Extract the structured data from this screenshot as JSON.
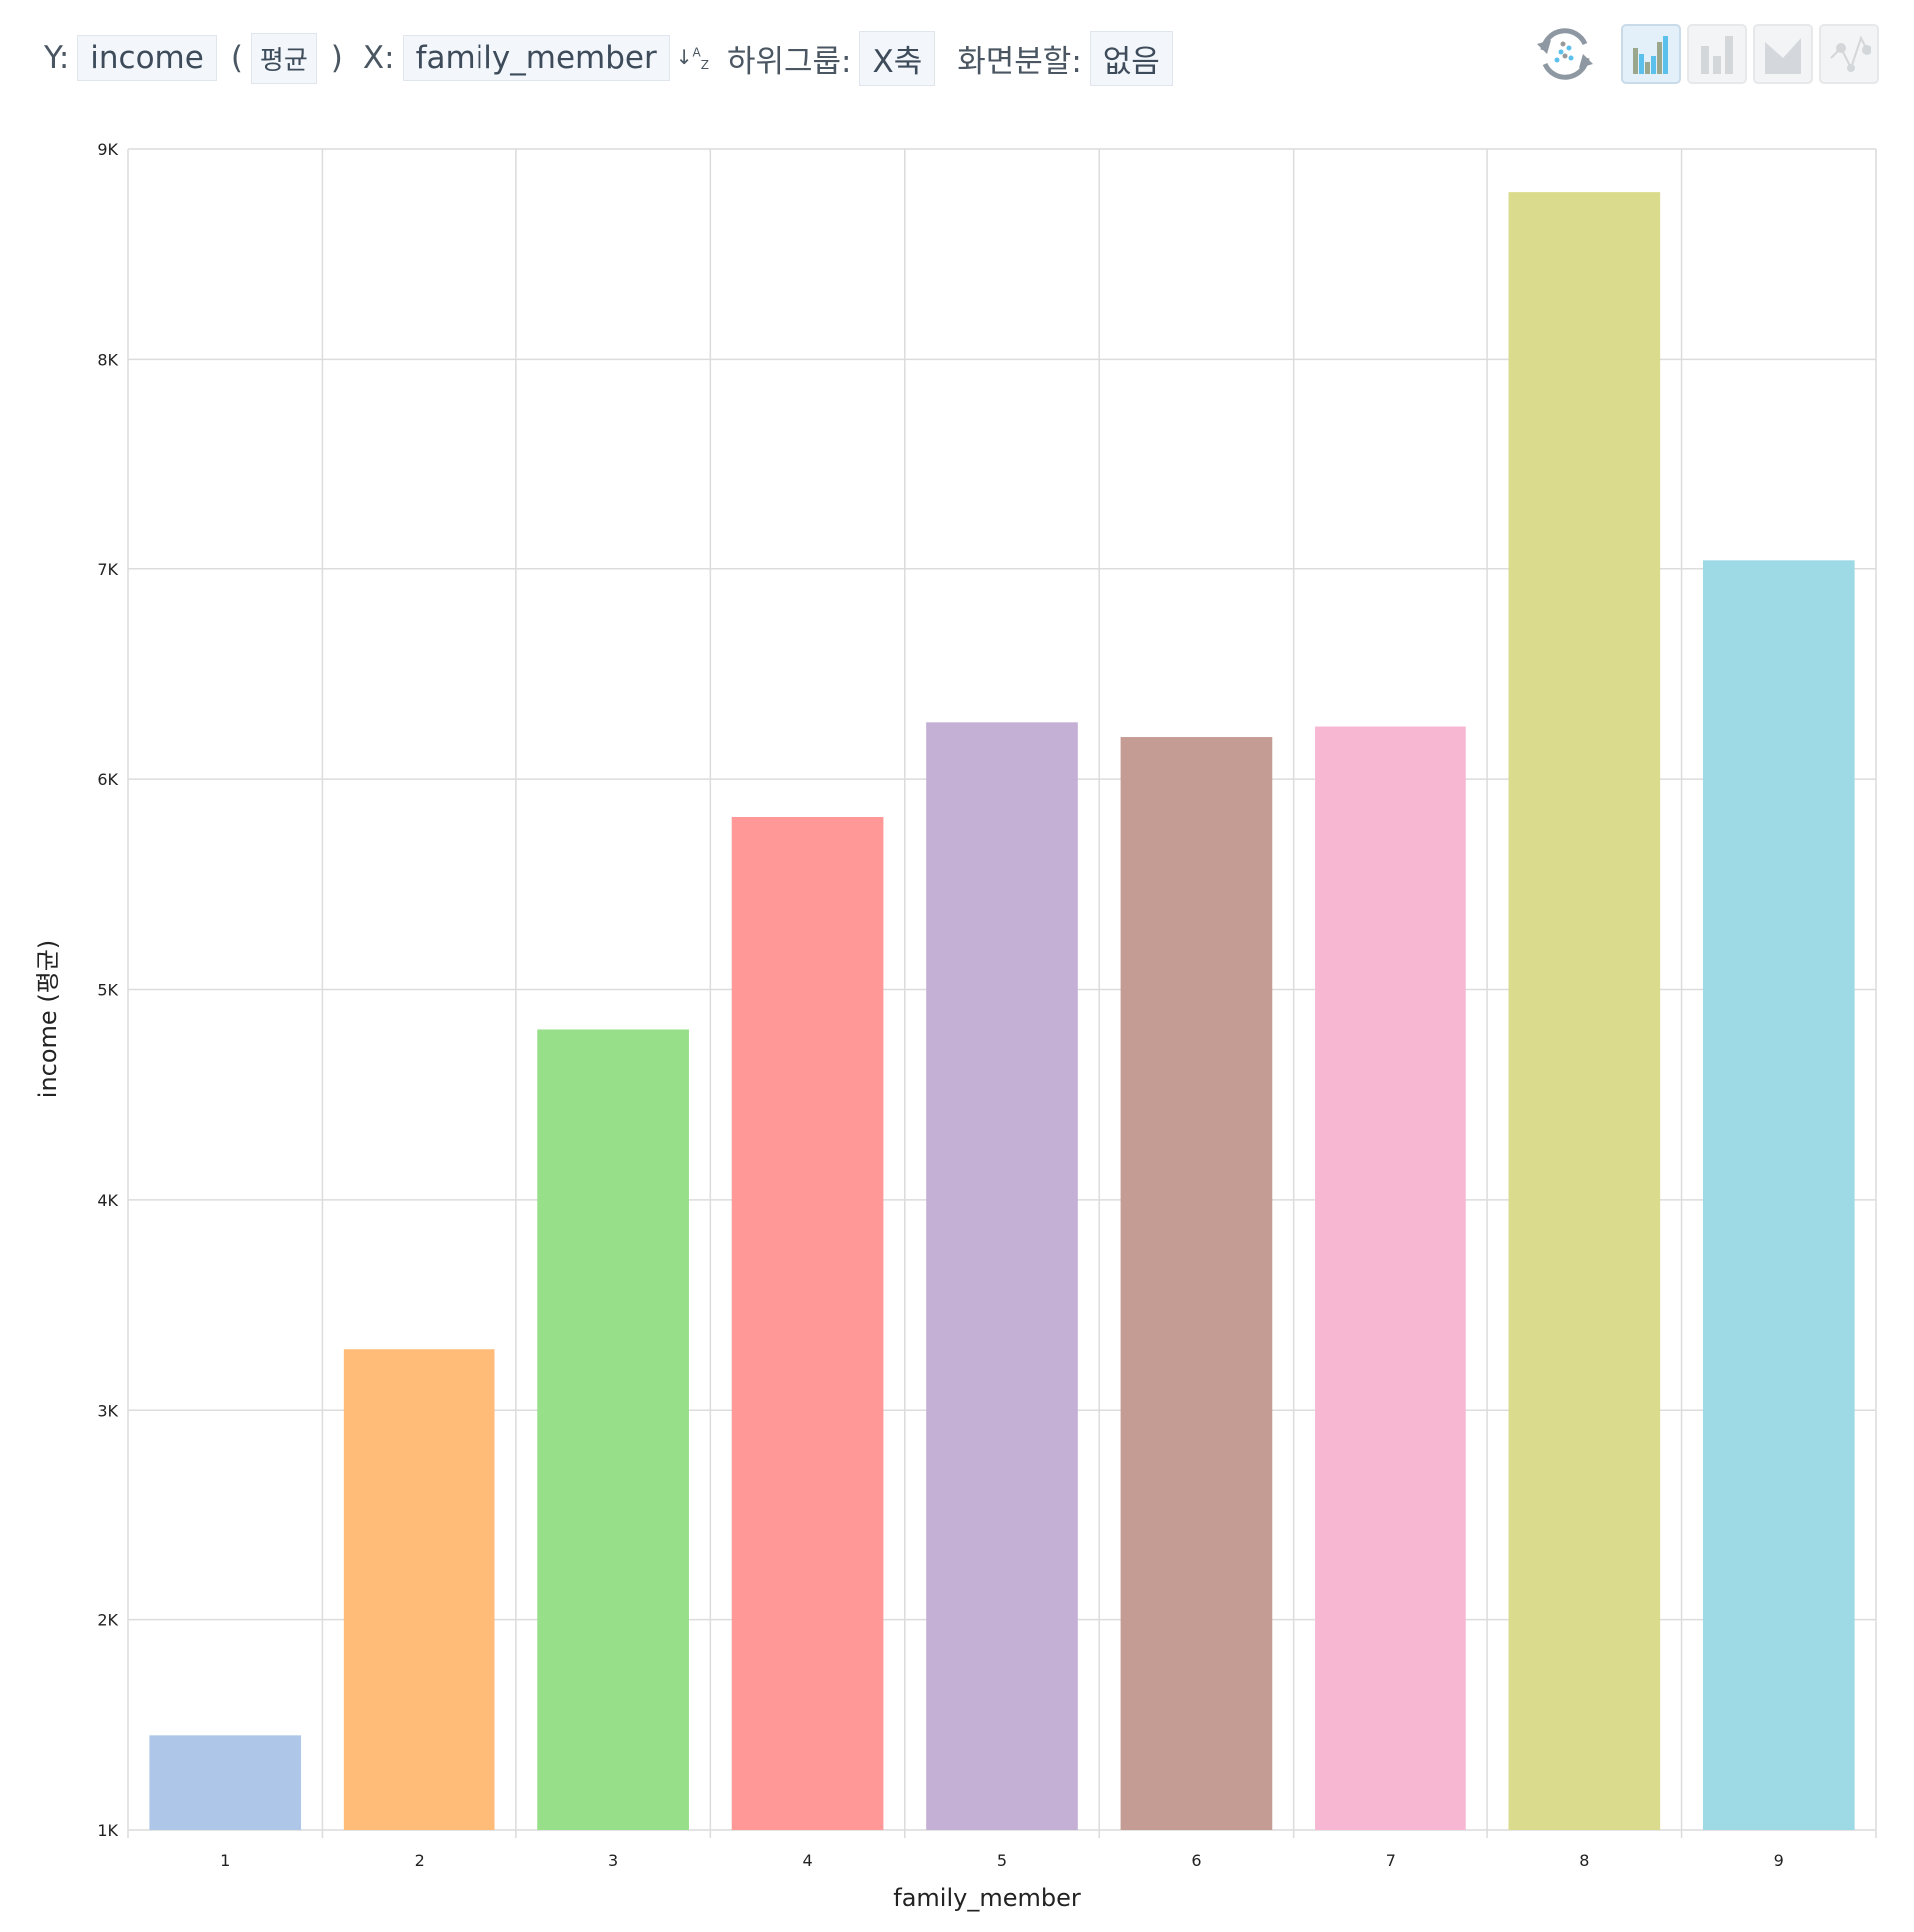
{
  "toolbar": {
    "y_label": "Y:",
    "y_field": "income",
    "agg_open": "(",
    "agg": "평균",
    "agg_close": ")",
    "x_label": "X:",
    "x_field": "family_member",
    "sort_icon": "sort-az-icon",
    "subgroup_label": "하위그룹:",
    "subgroup": "X축",
    "split_label": "화면분할:",
    "split": "없음"
  },
  "chart_types": [
    {
      "name": "bar",
      "icon": "bar-chart-icon",
      "active": true
    },
    {
      "name": "stacked-bar",
      "icon": "stacked-bar-chart-icon",
      "active": false
    },
    {
      "name": "area",
      "icon": "area-chart-icon",
      "active": false
    },
    {
      "name": "scatter-line",
      "icon": "line-chart-icon",
      "active": false
    }
  ],
  "chart_data": {
    "type": "bar",
    "categories": [
      "1",
      "2",
      "3",
      "4",
      "5",
      "6",
      "7",
      "8",
      "9"
    ],
    "values": [
      1450,
      3290,
      4810,
      5820,
      6270,
      6200,
      6250,
      8795,
      7040
    ],
    "colors": [
      "#aec7e8",
      "#ffbb78",
      "#98df8a",
      "#ff9896",
      "#c5b0d5",
      "#c49c94",
      "#f7b6d2",
      "#dbdb8d",
      "#9edae5"
    ],
    "xlabel": "family_member",
    "ylabel": "income (평균)",
    "ylim": [
      1000,
      9000
    ],
    "yticks": [
      1000,
      2000,
      3000,
      4000,
      5000,
      6000,
      7000,
      8000,
      9000
    ],
    "ytick_labels": [
      "1K",
      "2K",
      "3K",
      "4K",
      "5K",
      "6K",
      "7K",
      "8K",
      "9K"
    ],
    "grid": true
  }
}
